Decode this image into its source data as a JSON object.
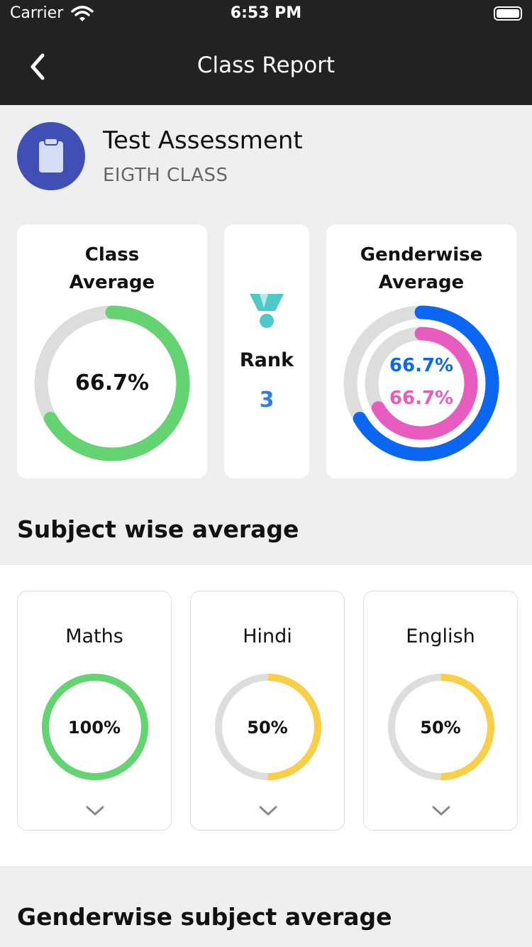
{
  "status": {
    "carrier": "Carrier",
    "time": "6:53 PM"
  },
  "nav": {
    "title": "Class Report"
  },
  "assessment": {
    "title": "Test Assessment",
    "class_name": "EIGTH CLASS"
  },
  "summary": {
    "class_average": {
      "title_line1": "Class",
      "title_line2": "Average",
      "value_label": "66.7%",
      "value": 66.7,
      "color": "#63d471"
    },
    "rank": {
      "label": "Rank",
      "value": "3",
      "icon": "medal-icon",
      "color": "#2f7be8",
      "icon_color": "#4cc9c9"
    },
    "genderwise": {
      "title_line1": "Genderwise",
      "title_line2": "Average",
      "boys": {
        "value_label": "66.7%",
        "value": 66.7,
        "color": "#0b66f2"
      },
      "girls": {
        "value_label": "66.7%",
        "value": 66.7,
        "color": "#e85bbf"
      }
    }
  },
  "subject_section_title": "Subject wise average",
  "subjects": [
    {
      "name": "Maths",
      "value_label": "100%",
      "value": 100,
      "color": "#63d471"
    },
    {
      "name": "Hindi",
      "value_label": "50%",
      "value": 50,
      "color": "#f8cf47"
    },
    {
      "name": "English",
      "value_label": "50%",
      "value": 50,
      "color": "#f8cf47"
    }
  ],
  "gender_section_title": "Genderwise subject average",
  "colors": {
    "ring_track": "#dddddd",
    "header": "#222222",
    "accent_icon_bg": "#3f4fb6"
  }
}
